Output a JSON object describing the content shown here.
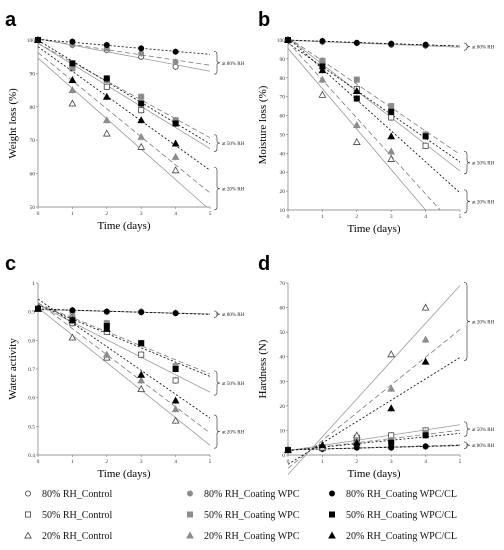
{
  "legend": [
    {
      "label": "80% RH_Control",
      "marker": "circle-open",
      "color": "#666666"
    },
    {
      "label": "50% RH_Control",
      "marker": "square-open",
      "color": "#666666"
    },
    {
      "label": "20% RH_Control",
      "marker": "triangle-open",
      "color": "#666666"
    },
    {
      "label": "80% RH_Coating WPC",
      "marker": "circle",
      "color": "#8c8c8c"
    },
    {
      "label": "50% RH_Coating WPC",
      "marker": "square",
      "color": "#8c8c8c"
    },
    {
      "label": "20% RH_Coating WPC",
      "marker": "triangle",
      "color": "#8c8c8c"
    },
    {
      "label": "80% RH_Coating WPC/CL",
      "marker": "circle",
      "color": "#000000"
    },
    {
      "label": "50% RH_Coating WPC/CL",
      "marker": "square",
      "color": "#000000"
    },
    {
      "label": "20% RH_Coating WPC/CL",
      "marker": "triangle",
      "color": "#000000"
    }
  ],
  "chart_data": [
    {
      "panel": "a",
      "type": "scatter",
      "xlabel": "Time (days)",
      "ylabel": "Weight loss (%)",
      "xlim": [
        0,
        5
      ],
      "ylim": [
        50,
        100
      ],
      "xticks": [
        0,
        1,
        2,
        3,
        4,
        5
      ],
      "yticks": [
        50,
        60,
        70,
        80,
        90,
        100
      ],
      "groups": [
        {
          "annotation": "at 80% RH",
          "slope": -1.9,
          "series": [
            {
              "legend": 0,
              "y": [
                100,
                98.5,
                97,
                95,
                92
              ]
            },
            {
              "legend": 3,
              "y": [
                100,
                98.5,
                97.5,
                96,
                93.5
              ]
            },
            {
              "legend": 6,
              "y": [
                100,
                99.5,
                98.5,
                97.5,
                96.5
              ]
            }
          ]
        },
        {
          "annotation": "at 50% RH",
          "slope": -6.3,
          "series": [
            {
              "legend": 1,
              "y": [
                100,
                92,
                86,
                79,
                75
              ]
            },
            {
              "legend": 4,
              "y": [
                100,
                91.5,
                88,
                83,
                76
              ]
            },
            {
              "legend": 7,
              "y": [
                100,
                93,
                88.5,
                81,
                75
              ]
            }
          ]
        },
        {
          "annotation": "at 20% RH",
          "slope": -10,
          "series": [
            {
              "legend": 2,
              "y": [
                100,
                81,
                72,
                68,
                61
              ]
            },
            {
              "legend": 5,
              "y": [
                100,
                85,
                76,
                71,
                65
              ]
            },
            {
              "legend": 8,
              "y": [
                100,
                88,
                83,
                76,
                69
              ]
            }
          ]
        }
      ]
    },
    {
      "panel": "b",
      "type": "scatter",
      "xlabel": "Time (days)",
      "ylabel": "Moisture loss (%)",
      "xlim": [
        0,
        5
      ],
      "ylim": [
        10,
        100
      ],
      "xticks": [
        0,
        1,
        2,
        3,
        4,
        5
      ],
      "yticks": [
        10,
        20,
        30,
        40,
        50,
        60,
        70,
        80,
        90,
        100
      ],
      "groups": [
        {
          "annotation": "at 80% RH",
          "slope": -0.8,
          "series": [
            {
              "legend": 0,
              "y": [
                100,
                99,
                98.5,
                97.5,
                97
              ]
            },
            {
              "legend": 3,
              "y": [
                100,
                99,
                98.5,
                98,
                97.5
              ]
            },
            {
              "legend": 6,
              "y": [
                100,
                99.5,
                98.5,
                98,
                97.5
              ]
            }
          ]
        },
        {
          "annotation": "at 50% RH",
          "slope": -12,
          "series": [
            {
              "legend": 1,
              "y": [
                100,
                88,
                74,
                59,
                44
              ]
            },
            {
              "legend": 4,
              "y": [
                100,
                89,
                79,
                65,
                50
              ]
            },
            {
              "legend": 7,
              "y": [
                100,
                86,
                69,
                62,
                49
              ]
            }
          ]
        },
        {
          "annotation": "at 20% RH",
          "slope": -19,
          "series": [
            {
              "legend": 2,
              "y": [
                100,
                71,
                46,
                37,
                null
              ]
            },
            {
              "legend": 5,
              "y": [
                100,
                79,
                55,
                41,
                null
              ]
            },
            {
              "legend": 8,
              "y": [
                100,
                84,
                73,
                49,
                null
              ]
            }
          ]
        }
      ]
    },
    {
      "panel": "c",
      "type": "scatter",
      "xlabel": "Time (days)",
      "ylabel": "Water activity",
      "xlim": [
        0,
        5
      ],
      "ylim": [
        0.4,
        1.0
      ],
      "xticks": [
        0,
        1,
        2,
        3,
        4,
        5
      ],
      "yticks": [
        0.4,
        0.5,
        0.6,
        0.7,
        0.8,
        0.9,
        1.0
      ],
      "groups": [
        {
          "annotation": "at 80% RH",
          "slope": -0.003,
          "series": [
            {
              "legend": 0,
              "y": [
                0.91,
                0.9,
                0.9,
                0.9,
                0.895
              ]
            },
            {
              "legend": 3,
              "y": [
                0.91,
                0.905,
                0.9,
                0.9,
                0.895
              ]
            },
            {
              "legend": 6,
              "y": [
                0.91,
                0.905,
                0.9,
                0.898,
                0.895
              ]
            }
          ]
        },
        {
          "annotation": "at 50% RH",
          "slope": -0.052,
          "series": [
            {
              "legend": 1,
              "y": [
                0.91,
                0.86,
                0.83,
                0.75,
                0.66
              ]
            },
            {
              "legend": 4,
              "y": [
                0.91,
                0.88,
                0.86,
                0.79,
                0.71
              ]
            },
            {
              "legend": 7,
              "y": [
                0.91,
                0.87,
                0.85,
                0.79,
                0.7
              ]
            }
          ]
        },
        {
          "annotation": "at 20% RH",
          "slope": -0.095,
          "series": [
            {
              "legend": 2,
              "y": [
                0.91,
                0.81,
                0.74,
                0.63,
                0.52
              ]
            },
            {
              "legend": 5,
              "y": [
                0.91,
                0.87,
                0.75,
                0.66,
                0.56
              ]
            },
            {
              "legend": 8,
              "y": [
                0.91,
                0.87,
                0.84,
                0.68,
                0.59
              ]
            }
          ]
        }
      ]
    },
    {
      "panel": "d",
      "type": "scatter",
      "xlabel": "Time (days)",
      "ylabel": "Hardness (N)",
      "xlim": [
        0,
        5
      ],
      "ylim": [
        0,
        70
      ],
      "xticks": [
        0,
        1,
        2,
        3,
        4,
        5
      ],
      "yticks": [
        0,
        10,
        20,
        30,
        40,
        50,
        60,
        70
      ],
      "groups": [
        {
          "annotation": "at 80% RH",
          "slope": 0.35,
          "series": [
            {
              "legend": 0,
              "y": [
                2,
                2.5,
                3,
                3,
                3.5
              ]
            },
            {
              "legend": 3,
              "y": [
                2,
                2.5,
                3,
                3.5,
                3.5
              ]
            },
            {
              "legend": 6,
              "y": [
                2,
                2.5,
                3,
                3,
                3.5
              ]
            }
          ]
        },
        {
          "annotation": "at 50% RH",
          "slope": 1.7,
          "series": [
            {
              "legend": 1,
              "y": [
                2,
                3,
                7,
                8,
                10
              ]
            },
            {
              "legend": 4,
              "y": [
                2,
                3,
                5,
                6,
                9
              ]
            },
            {
              "legend": 7,
              "y": [
                2,
                3,
                5,
                5,
                8
              ]
            }
          ]
        },
        {
          "annotation": "at 20% RH",
          "slope": 13,
          "series": [
            {
              "legend": 2,
              "y": [
                2,
                3,
                8,
                41,
                60
              ]
            },
            {
              "legend": 5,
              "y": [
                2,
                4,
                6,
                27,
                47
              ]
            },
            {
              "legend": 8,
              "y": [
                2,
                4,
                5,
                19,
                38
              ]
            }
          ]
        }
      ]
    }
  ]
}
